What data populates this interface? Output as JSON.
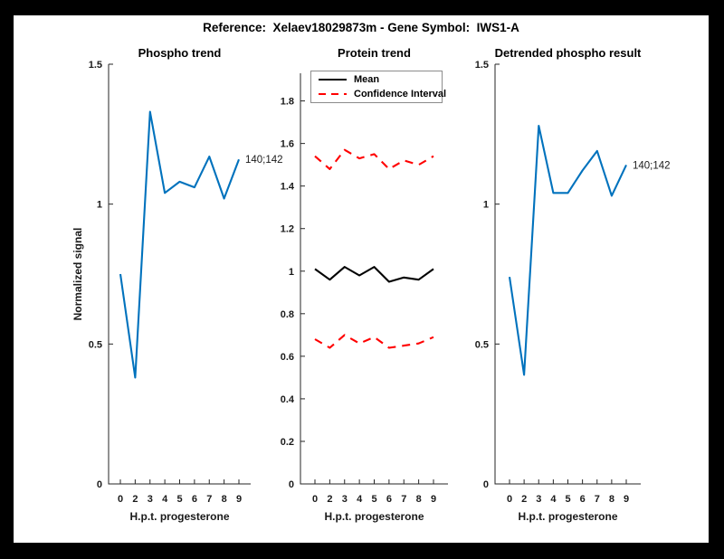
{
  "figure": {
    "title": "Reference:  Xelaev18029873m - Gene Symbol:  IWS1-A",
    "background": "#000000",
    "canvas_color": "#ffffff"
  },
  "colors": {
    "blue": "#0072BD",
    "red": "#FF0000",
    "black": "#000000",
    "axis": "#262626"
  },
  "legend": {
    "items": [
      {
        "label": "Mean",
        "color": "#000000",
        "dash": false
      },
      {
        "label": "Confidence Interval",
        "color": "#FF0000",
        "dash": true
      }
    ],
    "position": "top-left of middle subplot"
  },
  "chart_data": [
    {
      "type": "line",
      "title": "Phospho trend",
      "xlabel": "H.p.t. progesterone",
      "ylabel": "Normalized signal",
      "x_tick_labels": [
        "0",
        "2",
        "3",
        "4",
        "5",
        "6",
        "7",
        "8",
        "9"
      ],
      "yticks": [
        0,
        0.5,
        1,
        1.5
      ],
      "ytick_labels": [
        "0",
        "0.5",
        "1",
        "1.5"
      ],
      "ylim": [
        0,
        1.5
      ],
      "grid": false,
      "series": [
        {
          "name": "phospho-signal",
          "color": "#0072BD",
          "dash": false,
          "values": [
            0.75,
            0.38,
            1.33,
            1.04,
            1.08,
            1.06,
            1.17,
            1.02,
            1.16
          ]
        }
      ],
      "end_label": "140;142"
    },
    {
      "type": "line",
      "title": "Protein trend",
      "xlabel": "H.p.t. progesterone",
      "ylabel": "",
      "x_tick_labels": [
        "0",
        "2",
        "3",
        "4",
        "5",
        "6",
        "7",
        "8",
        "9"
      ],
      "yticks": [
        0,
        0.2,
        0.4,
        0.6,
        0.8,
        1,
        1.2,
        1.4,
        1.6,
        1.8
      ],
      "ytick_labels": [
        "0",
        "0.2",
        "0.4",
        "0.6",
        "0.8",
        "1",
        "1.2",
        "1.4",
        "1.6",
        "1.8"
      ],
      "ylim": [
        0,
        1.93
      ],
      "grid": false,
      "series": [
        {
          "name": "mean",
          "color": "#000000",
          "dash": false,
          "values": [
            1.01,
            0.96,
            1.02,
            0.98,
            1.02,
            0.95,
            0.97,
            0.96,
            1.01
          ]
        },
        {
          "name": "confidence-upper",
          "color": "#FF0000",
          "dash": true,
          "values": [
            1.54,
            1.48,
            1.57,
            1.53,
            1.55,
            1.48,
            1.52,
            1.5,
            1.54
          ]
        },
        {
          "name": "confidence-lower",
          "color": "#FF0000",
          "dash": true,
          "values": [
            0.68,
            0.64,
            0.7,
            0.66,
            0.69,
            0.64,
            0.65,
            0.66,
            0.69
          ]
        }
      ],
      "end_label": ""
    },
    {
      "type": "line",
      "title": "Detrended phospho result",
      "xlabel": "H.p.t. progesterone",
      "ylabel": "",
      "x_tick_labels": [
        "0",
        "2",
        "3",
        "4",
        "5",
        "6",
        "7",
        "8",
        "9"
      ],
      "yticks": [
        0,
        0.5,
        1,
        1.5
      ],
      "ytick_labels": [
        "0",
        "0.5",
        "1",
        "1.5"
      ],
      "ylim": [
        0,
        1.5
      ],
      "grid": false,
      "series": [
        {
          "name": "detrended-phospho",
          "color": "#0072BD",
          "dash": false,
          "values": [
            0.74,
            0.39,
            1.28,
            1.04,
            1.04,
            1.12,
            1.19,
            1.03,
            1.14
          ]
        }
      ],
      "end_label": "140;142"
    }
  ]
}
